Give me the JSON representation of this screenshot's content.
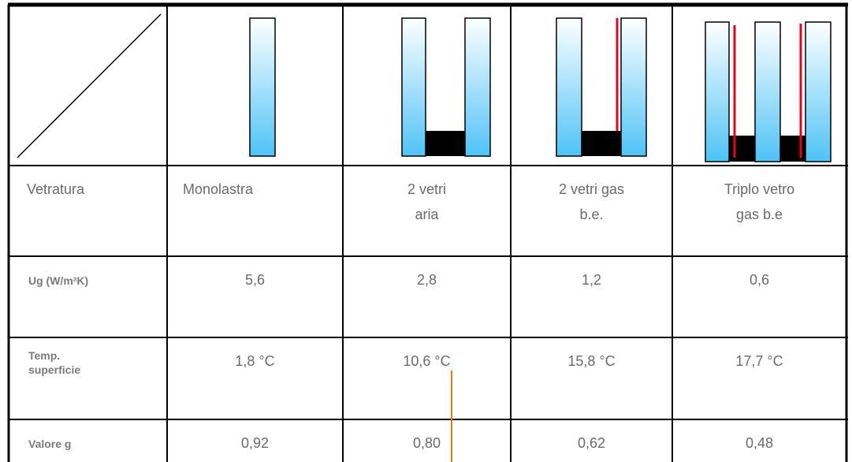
{
  "table": {
    "rows": [
      [
        "Vetratura",
        "Monolastra",
        "2 vetri\naria",
        "2 vetri gas\nb.e.",
        "Triplo vetro\ngas b.e"
      ],
      [
        "Ug  (W/m²K)",
        "5,6",
        "2,8",
        "1,2",
        "0,6"
      ],
      [
        "Temp.\nsuperficie",
        "1,8 °C",
        "10,6 °C",
        "15,8 °C",
        "17,7 °C"
      ],
      [
        "Valore g",
        "0,92",
        "0,80",
        "0,62",
        "0,48"
      ]
    ]
  }
}
